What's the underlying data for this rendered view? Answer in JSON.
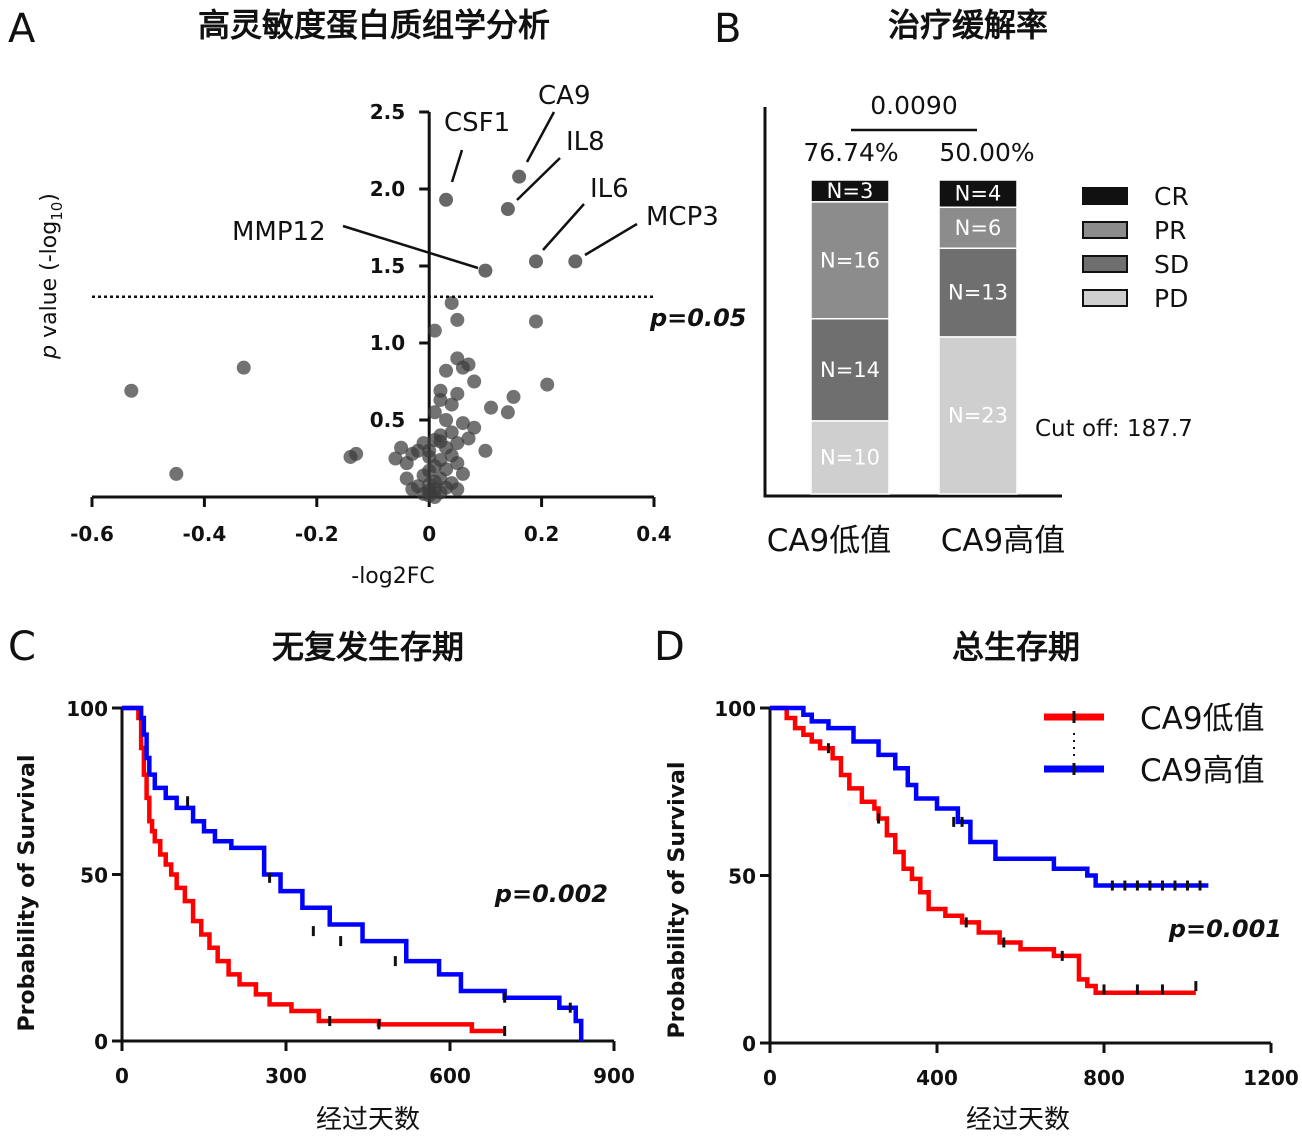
{
  "panels": {
    "A": {
      "letter": "A",
      "title": "高灵敏度蛋白质组学分析"
    },
    "B": {
      "letter": "B",
      "title": "治疗缓解率"
    },
    "C": {
      "letter": "C",
      "title": "无复发生存期"
    },
    "D": {
      "letter": "D",
      "title": "总生存期"
    }
  },
  "chart_data": [
    {
      "id": "A",
      "type": "scatter",
      "title": "高灵敏度蛋白质组学分析",
      "xlabel": "-log2FC",
      "ylabel_prefix": "p",
      "ylabel_rest": " value (-log",
      "ylabel_sub": "10",
      "ylabel_end": ")",
      "xlim": [
        -0.6,
        0.4
      ],
      "ylim": [
        0,
        2.5
      ],
      "xticks": [
        "-0.6",
        "-0.4",
        "-0.2",
        "0",
        "0.2",
        "0.4"
      ],
      "yticks": [
        "0.5",
        "1.0",
        "1.5",
        "2.0",
        "2.5"
      ],
      "threshold": {
        "y": 1.3,
        "label": "p=0.05"
      },
      "labeled_points": [
        {
          "label": "CSF1",
          "x": 0.03,
          "y": 1.93
        },
        {
          "label": "CA9",
          "x": 0.16,
          "y": 2.08
        },
        {
          "label": "IL8",
          "x": 0.14,
          "y": 1.87
        },
        {
          "label": "IL6",
          "x": 0.19,
          "y": 1.53
        },
        {
          "label": "MCP3",
          "x": 0.26,
          "y": 1.53
        },
        {
          "label": "MMP12",
          "x": 0.1,
          "y": 1.47
        }
      ],
      "points": [
        [
          -0.53,
          0.69
        ],
        [
          -0.33,
          0.84
        ],
        [
          -0.45,
          0.15
        ],
        [
          -0.14,
          0.26
        ],
        [
          -0.13,
          0.28
        ],
        [
          0.04,
          1.26
        ],
        [
          0.05,
          1.15
        ],
        [
          0.01,
          1.08
        ],
        [
          0.19,
          1.14
        ],
        [
          0.21,
          0.73
        ],
        [
          0.15,
          0.65
        ],
        [
          0.14,
          0.55
        ],
        [
          0.11,
          0.58
        ],
        [
          0.08,
          0.75
        ],
        [
          0.06,
          0.84
        ],
        [
          0.05,
          0.9
        ],
        [
          0.03,
          0.82
        ],
        [
          0.07,
          0.86
        ],
        [
          0.02,
          0.69
        ],
        [
          0.05,
          0.67
        ],
        [
          0.02,
          0.63
        ],
        [
          0.04,
          0.6
        ],
        [
          0.01,
          0.55
        ],
        [
          0.03,
          0.5
        ],
        [
          0.06,
          0.48
        ],
        [
          0.08,
          0.45
        ],
        [
          0.04,
          0.42
        ],
        [
          0.02,
          0.4
        ],
        [
          0.01,
          0.37
        ],
        [
          -0.01,
          0.35
        ],
        [
          0.05,
          0.35
        ],
        [
          0.07,
          0.38
        ],
        [
          0.1,
          0.3
        ],
        [
          0.03,
          0.32
        ],
        [
          -0.02,
          0.3
        ],
        [
          -0.03,
          0.28
        ],
        [
          0.0,
          0.26
        ],
        [
          0.02,
          0.24
        ],
        [
          0.05,
          0.22
        ],
        [
          0.04,
          0.27
        ],
        [
          -0.05,
          0.32
        ],
        [
          -0.04,
          0.22
        ],
        [
          0.01,
          0.2
        ],
        [
          0.03,
          0.18
        ],
        [
          0.0,
          0.17
        ],
        [
          -0.01,
          0.14
        ],
        [
          0.02,
          0.12
        ],
        [
          0.01,
          0.1
        ],
        [
          0.0,
          0.08
        ],
        [
          -0.02,
          0.07
        ],
        [
          0.01,
          0.05
        ],
        [
          0.0,
          0.04
        ],
        [
          0.02,
          0.03
        ],
        [
          -0.01,
          0.02
        ],
        [
          0.0,
          0.01
        ],
        [
          0.01,
          0.0
        ],
        [
          -0.03,
          0.05
        ],
        [
          0.03,
          0.06
        ],
        [
          0.04,
          0.09
        ],
        [
          0.06,
          0.15
        ],
        [
          -0.04,
          0.12
        ],
        [
          0.05,
          0.05
        ],
        [
          -0.06,
          0.25
        ],
        [
          0.0,
          0.3
        ],
        [
          0.02,
          0.36
        ]
      ]
    },
    {
      "id": "B",
      "type": "bar",
      "stacked": true,
      "title": "治疗缓解率",
      "categories": [
        "CA9低值",
        "CA9高值"
      ],
      "percent_labels": [
        "76.74%",
        "50.00%"
      ],
      "comparison_p": "0.0090",
      "annotation": "Cut off: 187.7",
      "series": [
        {
          "name": "CR",
          "color": "#111111",
          "values": [
            3,
            4
          ],
          "labels": [
            "N=3",
            "N=4"
          ]
        },
        {
          "name": "PR",
          "color": "#8c8c8c",
          "values": [
            16,
            6
          ],
          "labels": [
            "N=16",
            "N=6"
          ]
        },
        {
          "name": "SD",
          "color": "#6f6f6f",
          "values": [
            14,
            13
          ],
          "labels": [
            "N=14",
            "N=13"
          ]
        },
        {
          "name": "PD",
          "color": "#cfcfcf",
          "values": [
            10,
            23
          ],
          "labels": [
            "N=10",
            "N=23"
          ]
        }
      ],
      "legend": "right"
    },
    {
      "id": "C",
      "type": "line",
      "step": true,
      "title": "无复发生存期",
      "xlabel": "经过天数",
      "ylabel": "Probability of Survival",
      "xlim": [
        0,
        900
      ],
      "ylim": [
        0,
        100
      ],
      "xticks": [
        "0",
        "300",
        "600",
        "900"
      ],
      "yticks": [
        "0",
        "50",
        "100"
      ],
      "pvalue": "p=0.002",
      "series": [
        {
          "name": "CA9低值",
          "color": "#ff0000",
          "x": [
            0,
            30,
            35,
            40,
            45,
            50,
            55,
            60,
            70,
            80,
            90,
            100,
            115,
            130,
            145,
            160,
            175,
            195,
            215,
            245,
            270,
            310,
            360,
            470,
            640,
            700
          ],
          "y": [
            100,
            97,
            88,
            80,
            73,
            66,
            63,
            60,
            56,
            53,
            50,
            46,
            42,
            36,
            32,
            28,
            24,
            20,
            17,
            14,
            11,
            9,
            6,
            5,
            3,
            3
          ],
          "censor_x": [
            380,
            470,
            700
          ],
          "censor_y": [
            6,
            5,
            3
          ]
        },
        {
          "name": "CA9高值",
          "color": "#0000ff",
          "x": [
            0,
            35,
            40,
            45,
            50,
            60,
            80,
            100,
            130,
            150,
            170,
            200,
            260,
            290,
            330,
            380,
            440,
            520,
            580,
            620,
            700,
            800,
            830,
            840
          ],
          "y": [
            100,
            97,
            92,
            85,
            80,
            76,
            73,
            70,
            66,
            63,
            60,
            58,
            50,
            45,
            40,
            35,
            30,
            24,
            20,
            15,
            13,
            10,
            6,
            0
          ],
          "censor_x": [
            120,
            270,
            350,
            400,
            500,
            700,
            820
          ],
          "censor_y": [
            72,
            49,
            33,
            30,
            24,
            13,
            10
          ]
        }
      ]
    },
    {
      "id": "D",
      "type": "line",
      "step": true,
      "title": "总生存期",
      "xlabel": "经过天数",
      "ylabel": "Probability of Survival",
      "xlim": [
        0,
        1200
      ],
      "ylim": [
        0,
        100
      ],
      "xticks": [
        "0",
        "400",
        "800",
        "1200"
      ],
      "yticks": [
        "0",
        "50",
        "100"
      ],
      "pvalue": "p=0.001",
      "series": [
        {
          "name": "CA9低值",
          "color": "#ff0000",
          "x": [
            0,
            40,
            60,
            80,
            100,
            120,
            150,
            170,
            190,
            220,
            250,
            260,
            280,
            300,
            320,
            340,
            360,
            380,
            420,
            460,
            500,
            550,
            600,
            680,
            740,
            760,
            780,
            1020
          ],
          "y": [
            100,
            97,
            94,
            92,
            90,
            88,
            85,
            80,
            76,
            72,
            70,
            67,
            62,
            57,
            52,
            49,
            45,
            40,
            38,
            36,
            33,
            30,
            28,
            26,
            19,
            17,
            15,
            15
          ],
          "censor_x": [
            140,
            260,
            470,
            560,
            700,
            800,
            880,
            940,
            1020
          ],
          "censor_y": [
            88,
            67,
            36,
            30,
            26,
            16,
            16,
            16,
            17
          ]
        },
        {
          "name": "CA9高值",
          "color": "#0000ff",
          "x": [
            0,
            80,
            100,
            140,
            200,
            260,
            300,
            330,
            350,
            400,
            450,
            480,
            540,
            600,
            680,
            760,
            780,
            800,
            1050
          ],
          "y": [
            100,
            98,
            96,
            94,
            90,
            86,
            82,
            77,
            73,
            70,
            66,
            60,
            55,
            55,
            52,
            50,
            47,
            47,
            47
          ],
          "censor_x": [
            440,
            460,
            820,
            850,
            880,
            910,
            940,
            970,
            1000,
            1030
          ],
          "censor_y": [
            66,
            66,
            47,
            47,
            47,
            47,
            47,
            47,
            47,
            47
          ]
        }
      ]
    }
  ]
}
